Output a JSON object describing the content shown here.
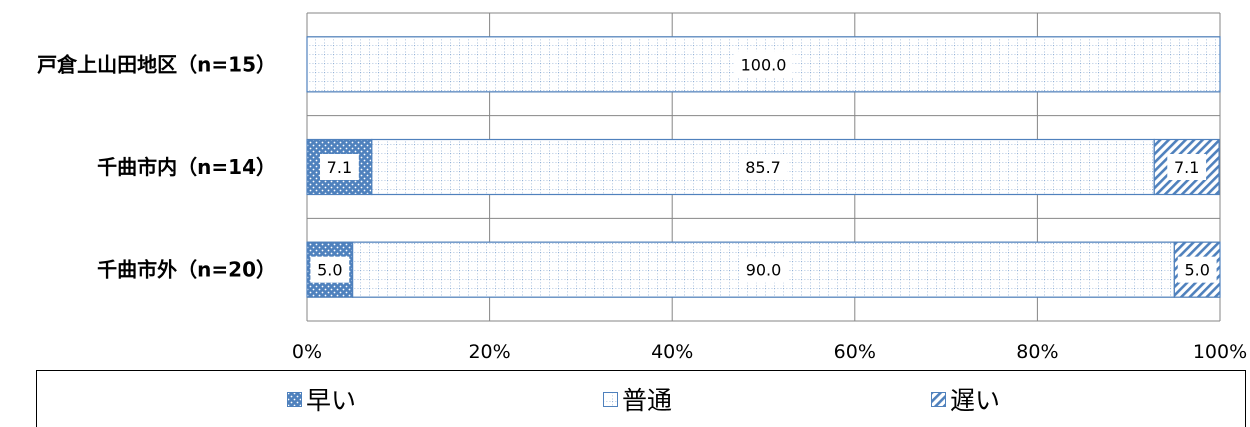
{
  "chart_data": {
    "type": "bar",
    "orientation": "horizontal",
    "stacked": true,
    "categories": [
      "戸倉上山田地区（n=15）",
      "千曲市内（n=14）",
      "千曲市外（n=20）"
    ],
    "series": [
      {
        "name": "早い",
        "values": [
          0,
          7.1,
          5.0
        ],
        "labels": [
          "",
          "7.1",
          "5.0"
        ],
        "color": "#4f81bd",
        "pattern": "dotted"
      },
      {
        "name": "普通",
        "values": [
          100.0,
          85.7,
          90.0
        ],
        "labels": [
          "100.0",
          "85.7",
          "90.0"
        ],
        "color": "#4f81bd",
        "pattern": "small-grid"
      },
      {
        "name": "遅い",
        "values": [
          0,
          7.1,
          5.0
        ],
        "labels": [
          "",
          "7.1",
          "5.0"
        ],
        "color": "#4f81bd",
        "pattern": "diagonal"
      }
    ],
    "xlim": [
      0,
      100
    ],
    "xticks": [
      0,
      20,
      40,
      60,
      80,
      100
    ],
    "xtick_labels": [
      "0%",
      "20%",
      "40%",
      "60%",
      "80%",
      "100%"
    ],
    "grid": true,
    "legend": "bottom"
  }
}
